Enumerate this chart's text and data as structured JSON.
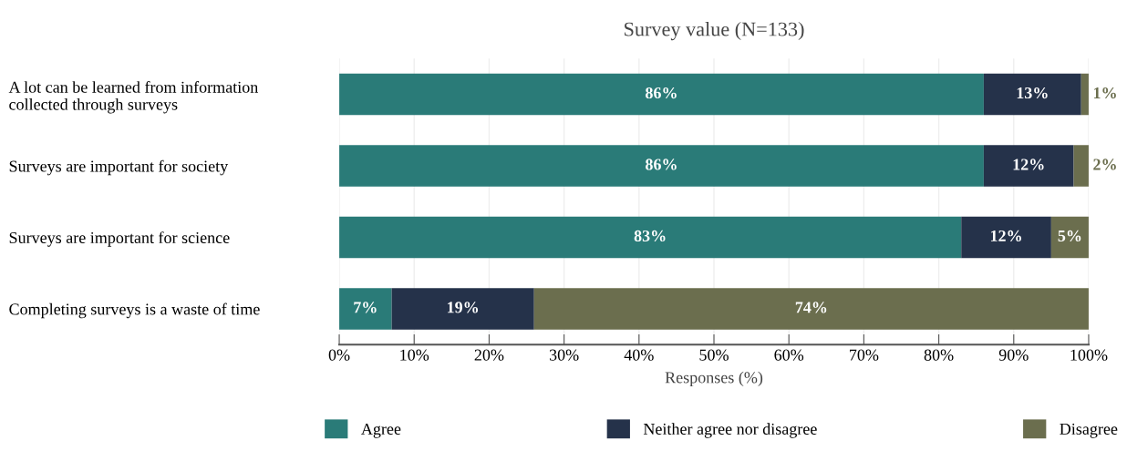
{
  "chart_data": {
    "type": "bar",
    "orientation": "horizontal",
    "stacked": true,
    "title": "Survey value (N=133)",
    "xlabel": "Responses (%)",
    "categories": [
      "A lot can be learned from information\ncollected through surveys",
      "Surveys are important for society",
      "Surveys are important for science",
      "Completing surveys is a waste of time"
    ],
    "series": [
      {
        "name": "Agree",
        "color": "#2a7b78",
        "values": [
          86,
          86,
          83,
          7
        ]
      },
      {
        "name": "Neither agree nor disagree",
        "color": "#25324a",
        "values": [
          13,
          12,
          12,
          19
        ]
      },
      {
        "name": "Disagree",
        "color": "#6b6e4e",
        "values": [
          1,
          2,
          5,
          74
        ]
      }
    ],
    "value_labels": [
      [
        "86%",
        "86%",
        "83%",
        "7%"
      ],
      [
        "13%",
        "12%",
        "12%",
        "19%"
      ],
      [
        "1%",
        "2%",
        "5%",
        "74%"
      ]
    ],
    "xlim": [
      0,
      100
    ],
    "xticks": [
      {
        "value": 0,
        "label": "0%"
      },
      {
        "value": 10,
        "label": "10%"
      },
      {
        "value": 20,
        "label": "20%"
      },
      {
        "value": 30,
        "label": "30%"
      },
      {
        "value": 40,
        "label": "40%"
      },
      {
        "value": 50,
        "label": "50%"
      },
      {
        "value": 60,
        "label": "60%"
      },
      {
        "value": 70,
        "label": "70%"
      },
      {
        "value": 80,
        "label": "80%"
      },
      {
        "value": 90,
        "label": "90%"
      },
      {
        "value": 100,
        "label": "100%"
      }
    ],
    "grid": "x",
    "legend": "bottom"
  }
}
